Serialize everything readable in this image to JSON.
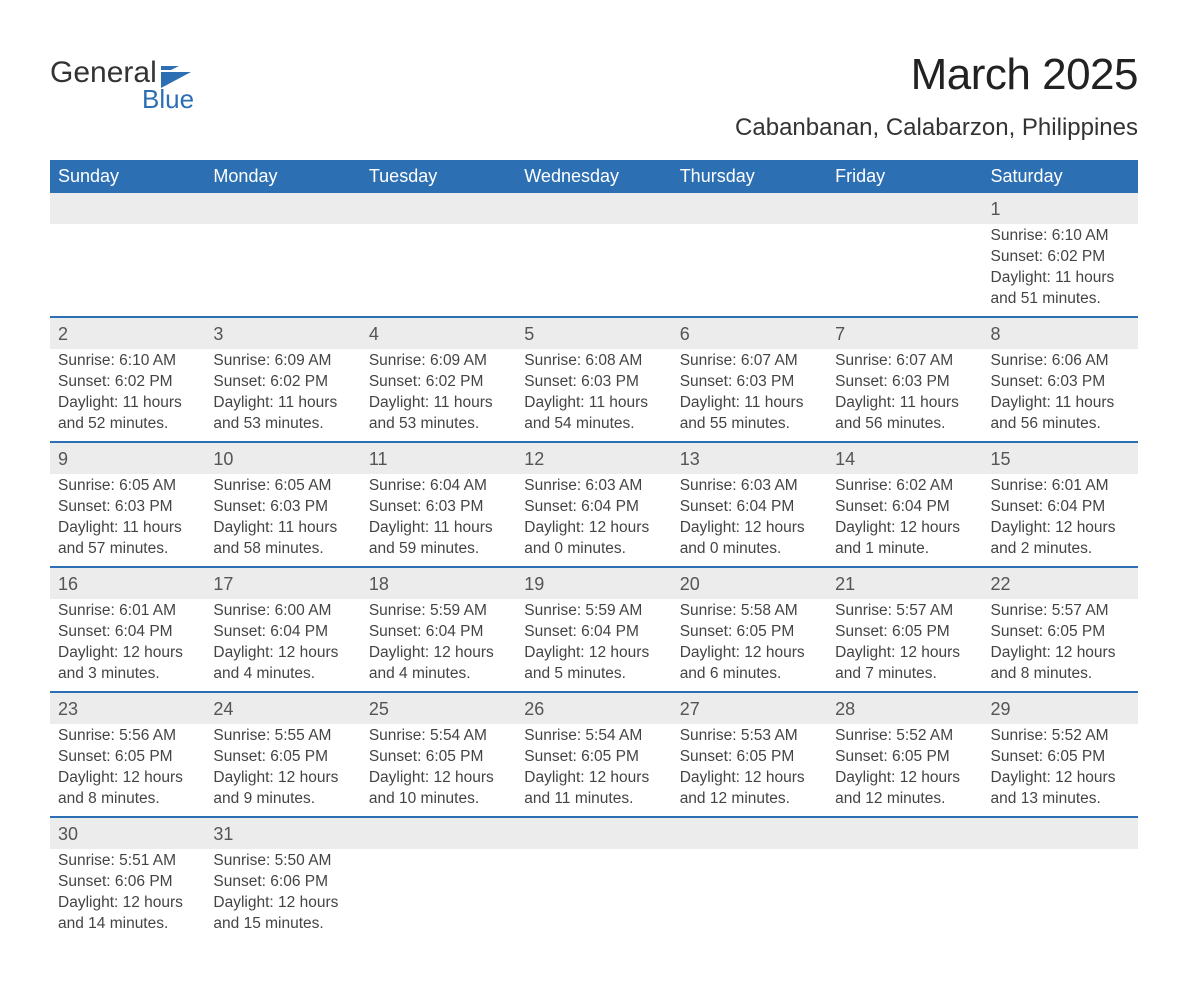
{
  "logo": {
    "text1": "General",
    "text2": "Blue",
    "accent_color": "#2d6fb3"
  },
  "header": {
    "title": "March 2025",
    "location": "Cabanbanan, Calabarzon, Philippines"
  },
  "calendar": {
    "header_bg": "#2d6fb3",
    "header_fg": "#ffffff",
    "row_sep_color": "#2d6fb3",
    "daynum_bg": "#ececec",
    "text_color": "#444444",
    "font_size_pt": 12,
    "columns": [
      "Sunday",
      "Monday",
      "Tuesday",
      "Wednesday",
      "Thursday",
      "Friday",
      "Saturday"
    ],
    "weeks": [
      [
        null,
        null,
        null,
        null,
        null,
        null,
        {
          "n": 1,
          "sunrise": "6:10 AM",
          "sunset": "6:02 PM",
          "daylight": "11 hours and 51 minutes."
        }
      ],
      [
        {
          "n": 2,
          "sunrise": "6:10 AM",
          "sunset": "6:02 PM",
          "daylight": "11 hours and 52 minutes."
        },
        {
          "n": 3,
          "sunrise": "6:09 AM",
          "sunset": "6:02 PM",
          "daylight": "11 hours and 53 minutes."
        },
        {
          "n": 4,
          "sunrise": "6:09 AM",
          "sunset": "6:02 PM",
          "daylight": "11 hours and 53 minutes."
        },
        {
          "n": 5,
          "sunrise": "6:08 AM",
          "sunset": "6:03 PM",
          "daylight": "11 hours and 54 minutes."
        },
        {
          "n": 6,
          "sunrise": "6:07 AM",
          "sunset": "6:03 PM",
          "daylight": "11 hours and 55 minutes."
        },
        {
          "n": 7,
          "sunrise": "6:07 AM",
          "sunset": "6:03 PM",
          "daylight": "11 hours and 56 minutes."
        },
        {
          "n": 8,
          "sunrise": "6:06 AM",
          "sunset": "6:03 PM",
          "daylight": "11 hours and 56 minutes."
        }
      ],
      [
        {
          "n": 9,
          "sunrise": "6:05 AM",
          "sunset": "6:03 PM",
          "daylight": "11 hours and 57 minutes."
        },
        {
          "n": 10,
          "sunrise": "6:05 AM",
          "sunset": "6:03 PM",
          "daylight": "11 hours and 58 minutes."
        },
        {
          "n": 11,
          "sunrise": "6:04 AM",
          "sunset": "6:03 PM",
          "daylight": "11 hours and 59 minutes."
        },
        {
          "n": 12,
          "sunrise": "6:03 AM",
          "sunset": "6:04 PM",
          "daylight": "12 hours and 0 minutes."
        },
        {
          "n": 13,
          "sunrise": "6:03 AM",
          "sunset": "6:04 PM",
          "daylight": "12 hours and 0 minutes."
        },
        {
          "n": 14,
          "sunrise": "6:02 AM",
          "sunset": "6:04 PM",
          "daylight": "12 hours and 1 minute."
        },
        {
          "n": 15,
          "sunrise": "6:01 AM",
          "sunset": "6:04 PM",
          "daylight": "12 hours and 2 minutes."
        }
      ],
      [
        {
          "n": 16,
          "sunrise": "6:01 AM",
          "sunset": "6:04 PM",
          "daylight": "12 hours and 3 minutes."
        },
        {
          "n": 17,
          "sunrise": "6:00 AM",
          "sunset": "6:04 PM",
          "daylight": "12 hours and 4 minutes."
        },
        {
          "n": 18,
          "sunrise": "5:59 AM",
          "sunset": "6:04 PM",
          "daylight": "12 hours and 4 minutes."
        },
        {
          "n": 19,
          "sunrise": "5:59 AM",
          "sunset": "6:04 PM",
          "daylight": "12 hours and 5 minutes."
        },
        {
          "n": 20,
          "sunrise": "5:58 AM",
          "sunset": "6:05 PM",
          "daylight": "12 hours and 6 minutes."
        },
        {
          "n": 21,
          "sunrise": "5:57 AM",
          "sunset": "6:05 PM",
          "daylight": "12 hours and 7 minutes."
        },
        {
          "n": 22,
          "sunrise": "5:57 AM",
          "sunset": "6:05 PM",
          "daylight": "12 hours and 8 minutes."
        }
      ],
      [
        {
          "n": 23,
          "sunrise": "5:56 AM",
          "sunset": "6:05 PM",
          "daylight": "12 hours and 8 minutes."
        },
        {
          "n": 24,
          "sunrise": "5:55 AM",
          "sunset": "6:05 PM",
          "daylight": "12 hours and 9 minutes."
        },
        {
          "n": 25,
          "sunrise": "5:54 AM",
          "sunset": "6:05 PM",
          "daylight": "12 hours and 10 minutes."
        },
        {
          "n": 26,
          "sunrise": "5:54 AM",
          "sunset": "6:05 PM",
          "daylight": "12 hours and 11 minutes."
        },
        {
          "n": 27,
          "sunrise": "5:53 AM",
          "sunset": "6:05 PM",
          "daylight": "12 hours and 12 minutes."
        },
        {
          "n": 28,
          "sunrise": "5:52 AM",
          "sunset": "6:05 PM",
          "daylight": "12 hours and 12 minutes."
        },
        {
          "n": 29,
          "sunrise": "5:52 AM",
          "sunset": "6:05 PM",
          "daylight": "12 hours and 13 minutes."
        }
      ],
      [
        {
          "n": 30,
          "sunrise": "5:51 AM",
          "sunset": "6:06 PM",
          "daylight": "12 hours and 14 minutes."
        },
        {
          "n": 31,
          "sunrise": "5:50 AM",
          "sunset": "6:06 PM",
          "daylight": "12 hours and 15 minutes."
        },
        null,
        null,
        null,
        null,
        null
      ]
    ],
    "labels": {
      "sunrise": "Sunrise: ",
      "sunset": "Sunset: ",
      "daylight": "Daylight: "
    }
  }
}
